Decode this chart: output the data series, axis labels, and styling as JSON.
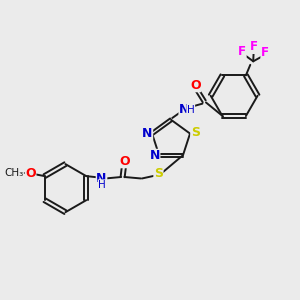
{
  "background_color": "#ebebeb",
  "bond_color": "#1a1a1a",
  "atom_colors": {
    "N": "#0000cc",
    "O": "#ff0000",
    "S": "#cccc00",
    "F": "#ff00ff",
    "C": "#1a1a1a",
    "H": "#0000cc"
  },
  "figsize": [
    3.0,
    3.0
  ],
  "dpi": 100
}
